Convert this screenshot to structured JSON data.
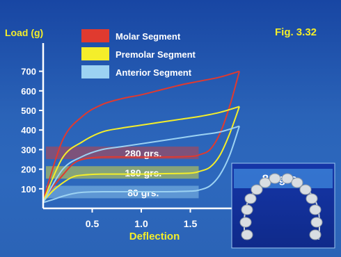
{
  "colors": {
    "molar": "#e03a2f",
    "premolar": "#f4ee2a",
    "anterior": "#9cd2f2",
    "axis_text": "#ffffff",
    "ylabel": "#f4ee2a",
    "xlabel": "#f4ee2a"
  },
  "chart_data": {
    "type": "line",
    "title": "",
    "figure_label": "Fig. 3.32",
    "ylabel": "Load (g)",
    "xlabel": "Deflection",
    "xlim": [
      0,
      2.0
    ],
    "ylim": [
      0,
      800
    ],
    "x_ticks": [
      0.5,
      1.0,
      1.5
    ],
    "x_tick_labels": [
      "0.5",
      "1.0",
      "1.5"
    ],
    "y_ticks": [
      100,
      200,
      300,
      400,
      500,
      600,
      700
    ],
    "y_tick_labels": [
      "100",
      "200",
      "300",
      "400",
      "500",
      "600",
      "700"
    ],
    "legend_placement": "top-left",
    "grid": false,
    "series": [
      {
        "name": "Molar Segment",
        "color_key": "molar",
        "loading": [
          [
            0,
            40
          ],
          [
            0.2,
            350
          ],
          [
            0.4,
            470
          ],
          [
            0.6,
            530
          ],
          [
            0.8,
            560
          ],
          [
            1.0,
            580
          ],
          [
            1.2,
            605
          ],
          [
            1.4,
            630
          ],
          [
            1.6,
            650
          ],
          [
            1.8,
            670
          ],
          [
            2.0,
            700
          ]
        ],
        "unloading": [
          [
            2.0,
            700
          ],
          [
            1.9,
            520
          ],
          [
            1.8,
            380
          ],
          [
            1.7,
            300
          ],
          [
            1.6,
            275
          ],
          [
            1.5,
            265
          ],
          [
            1.2,
            262
          ],
          [
            1.0,
            262
          ],
          [
            0.6,
            262
          ],
          [
            0.4,
            250
          ],
          [
            0.3,
            225
          ],
          [
            0.2,
            170
          ],
          [
            0.1,
            110
          ],
          [
            0,
            40
          ]
        ],
        "band_value": 280,
        "band_label": "280 grs."
      },
      {
        "name": "Premolar Segment",
        "color_key": "premolar",
        "loading": [
          [
            0,
            35
          ],
          [
            0.2,
            260
          ],
          [
            0.4,
            340
          ],
          [
            0.6,
            390
          ],
          [
            0.8,
            410
          ],
          [
            1.0,
            425
          ],
          [
            1.2,
            440
          ],
          [
            1.4,
            455
          ],
          [
            1.6,
            470
          ],
          [
            1.8,
            490
          ],
          [
            2.0,
            520
          ]
        ],
        "unloading": [
          [
            2.0,
            520
          ],
          [
            1.9,
            380
          ],
          [
            1.8,
            270
          ],
          [
            1.7,
            210
          ],
          [
            1.6,
            190
          ],
          [
            1.5,
            180
          ],
          [
            1.2,
            177
          ],
          [
            1.0,
            175
          ],
          [
            0.6,
            175
          ],
          [
            0.4,
            170
          ],
          [
            0.3,
            160
          ],
          [
            0.2,
            130
          ],
          [
            0.1,
            90
          ],
          [
            0,
            35
          ]
        ],
        "band_value": 180,
        "band_label": "180 grs."
      },
      {
        "name": "Anterior Segment",
        "color_key": "anterior",
        "loading": [
          [
            0,
            30
          ],
          [
            0.2,
            200
          ],
          [
            0.4,
            265
          ],
          [
            0.6,
            300
          ],
          [
            0.8,
            315
          ],
          [
            1.0,
            330
          ],
          [
            1.2,
            345
          ],
          [
            1.4,
            360
          ],
          [
            1.6,
            375
          ],
          [
            1.8,
            390
          ],
          [
            2.0,
            420
          ]
        ],
        "unloading": [
          [
            2.0,
            420
          ],
          [
            1.9,
            270
          ],
          [
            1.8,
            170
          ],
          [
            1.7,
            115
          ],
          [
            1.6,
            95
          ],
          [
            1.5,
            88
          ],
          [
            1.2,
            85
          ],
          [
            1.0,
            85
          ],
          [
            0.6,
            85
          ],
          [
            0.4,
            82
          ],
          [
            0.3,
            75
          ],
          [
            0.2,
            62
          ],
          [
            0.1,
            45
          ],
          [
            0,
            30
          ]
        ],
        "band_value": 80,
        "band_label": "80 grs."
      }
    ],
    "inset_label": "80 grs."
  }
}
